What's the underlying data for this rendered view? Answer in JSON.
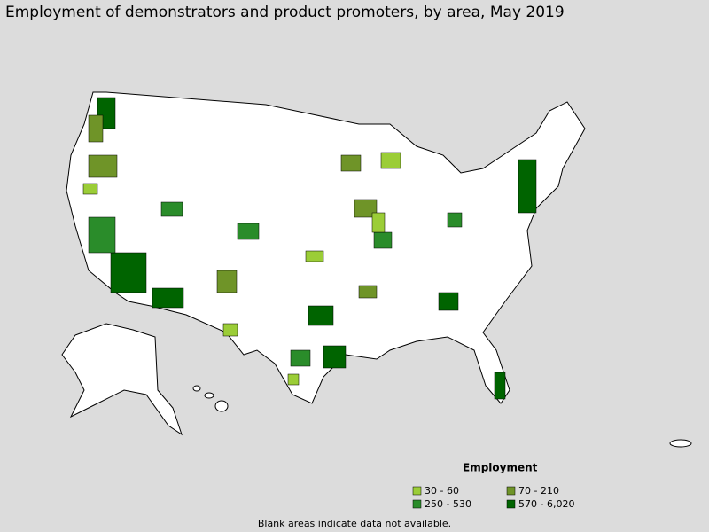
{
  "title": "Employment of demonstrators and product promoters, by area, May 2019",
  "legend": {
    "title": "Employment",
    "entries": [
      {
        "label": "30 - 60",
        "color": "#9bcd37"
      },
      {
        "label": "70 - 210",
        "color": "#6f9428"
      },
      {
        "label": "250 - 530",
        "color": "#2a8c2a"
      },
      {
        "label": "570 - 6,020",
        "color": "#006400"
      }
    ]
  },
  "note": "Blank areas indicate data not available."
}
